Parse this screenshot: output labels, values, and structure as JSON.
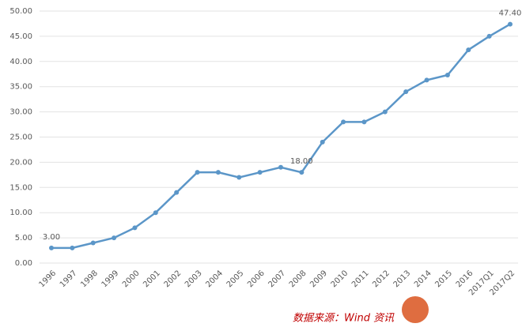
{
  "chart_data": {
    "type": "line",
    "categories": [
      "1996",
      "1997",
      "1998",
      "1999",
      "2000",
      "2001",
      "2002",
      "2003",
      "2004",
      "2005",
      "2006",
      "2007",
      "2008",
      "2009",
      "2010",
      "2011",
      "2012",
      "2013",
      "2014",
      "2015",
      "2016",
      "2017Q1",
      "2017Q2"
    ],
    "values": [
      3,
      3,
      4,
      5,
      7,
      10,
      14,
      18,
      18,
      17,
      18,
      19,
      18,
      24,
      28,
      28,
      30,
      34,
      36.3,
      37.3,
      42.3,
      45,
      47.4
    ],
    "value_labels": [
      "3.00",
      null,
      null,
      null,
      null,
      null,
      null,
      null,
      null,
      null,
      null,
      null,
      "18.00",
      null,
      null,
      null,
      null,
      null,
      null,
      null,
      null,
      null,
      "47.40"
    ],
    "color": "#5b96c8",
    "ylim": [
      0,
      50
    ],
    "yticks": [
      {
        "value": 0,
        "label": "0.00"
      },
      {
        "value": 5,
        "label": "5.00"
      },
      {
        "value": 10,
        "label": "10.00"
      },
      {
        "value": 15,
        "label": "15.00"
      },
      {
        "value": 20,
        "label": "20.00"
      },
      {
        "value": 25,
        "label": "25.00"
      },
      {
        "value": 30,
        "label": "30.00"
      },
      {
        "value": 35,
        "label": "35.00"
      },
      {
        "value": 40,
        "label": "40.00"
      },
      {
        "value": 45,
        "label": "45.00"
      },
      {
        "value": 50,
        "label": "50.00"
      }
    ],
    "grid": true,
    "source": "数据来源：Wind 资讯"
  }
}
